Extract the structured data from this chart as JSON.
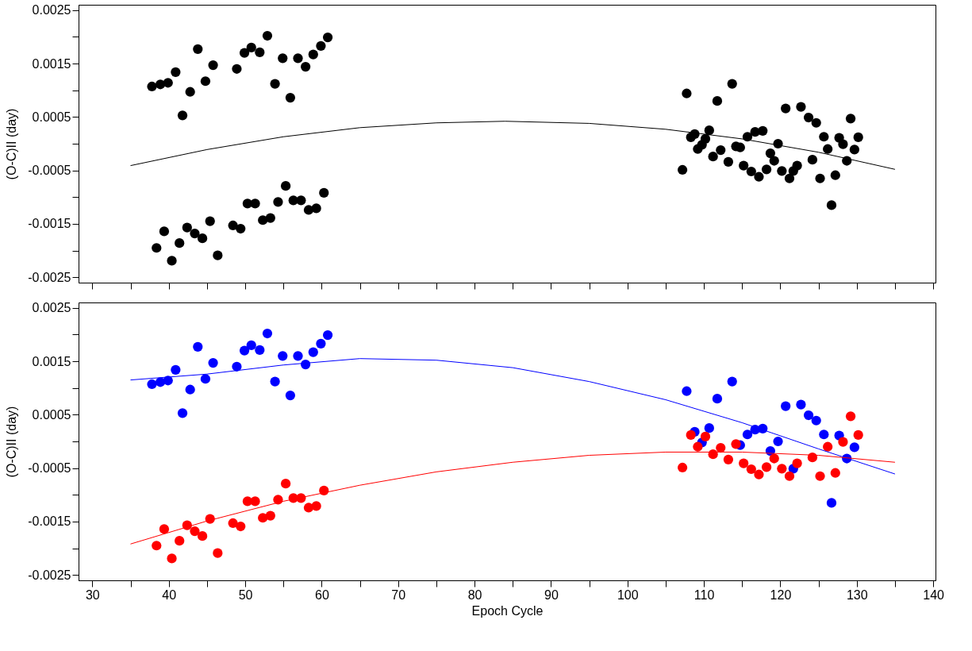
{
  "chart_data": [
    {
      "type": "scatter",
      "ylabel": "(O-C)II (day)",
      "tick_labels": "y",
      "xlim": [
        28.2,
        140.3
      ],
      "ylim": [
        -0.0026,
        0.0026
      ],
      "xticks": [
        30,
        {
          "value": 35,
          "label": null
        },
        40,
        {
          "value": 45,
          "label": null
        },
        50,
        {
          "value": 55,
          "label": null
        },
        60,
        {
          "value": 65,
          "label": null
        },
        70,
        {
          "value": 75,
          "label": null
        },
        80,
        {
          "value": 85,
          "label": null
        },
        90,
        {
          "value": 95,
          "label": null
        },
        100,
        {
          "value": 105,
          "label": null
        },
        110,
        {
          "value": 115,
          "label": null
        },
        120,
        {
          "value": 125,
          "label": null
        },
        130,
        {
          "value": 135,
          "label": null
        },
        140
      ],
      "yticks": [
        -0.0025,
        {
          "value": -0.002,
          "label": null
        },
        -0.0015,
        {
          "value": -0.001,
          "label": null
        },
        -0.0005,
        {
          "value": 0,
          "label": null
        },
        0.0005,
        {
          "value": 0.001,
          "label": null
        },
        0.0015,
        {
          "value": 0.002,
          "label": null
        },
        0.0025
      ],
      "series": [
        {
          "color": "#000000",
          "marker": "circle",
          "x": [
            37.8,
            38.9,
            39.9,
            40.9,
            41.8,
            42.8,
            43.8,
            44.8,
            45.8,
            48.9,
            49.9,
            50.8,
            51.9,
            52.9,
            53.9,
            54.9,
            55.9,
            56.9,
            57.9,
            58.9,
            59.9,
            60.8,
            107.75,
            108.8,
            109.75,
            110.7,
            111.75,
            113.7,
            114.75,
            115.7,
            116.7,
            117.7,
            118.7,
            119.7,
            120.7,
            121.7,
            122.7,
            123.7,
            124.7,
            125.7,
            126.7,
            127.7,
            128.7,
            129.7,
            38.4,
            39.4,
            40.4,
            41.4,
            42.4,
            43.4,
            44.4,
            45.4,
            46.4,
            48.4,
            49.4,
            50.3,
            51.3,
            52.3,
            53.3,
            54.3,
            55.3,
            56.3,
            57.3,
            58.3,
            59.3,
            60.3,
            107.2,
            108.3,
            109.2,
            110.2,
            111.2,
            112.2,
            113.2,
            114.2,
            115.2,
            116.2,
            117.2,
            118.2,
            119.2,
            120.2,
            121.2,
            122.2,
            124.2,
            125.2,
            126.2,
            127.2,
            128.2,
            129.2,
            130.2
          ],
          "values": [
            0.00107,
            0.00111,
            0.00114,
            0.00134,
            0.00053,
            0.00097,
            0.00177,
            0.00117,
            0.00147,
            0.0014,
            0.0017,
            0.0018,
            0.00171,
            0.00202,
            0.00112,
            0.0016,
            0.00086,
            0.0016,
            0.00144,
            0.00167,
            0.00183,
            0.00199,
            0.00094,
            0.00018,
            -2e-05,
            0.00025,
            0.0008,
            0.00112,
            -7e-05,
            0.00013,
            0.00022,
            0.00024,
            -0.00018,
            0,
            0.00066,
            -0.00051,
            0.00069,
            0.00049,
            0.00039,
            0.00013,
            -0.00115,
            0.00011,
            -0.00032,
            -0.00011,
            -0.00195,
            -0.00164,
            -0.00219,
            -0.00186,
            -0.00157,
            -0.00168,
            -0.00177,
            -0.00145,
            -0.00209,
            -0.00153,
            -0.00159,
            -0.00112,
            -0.00112,
            -0.00143,
            -0.00139,
            -0.00109,
            -0.00079,
            -0.00106,
            -0.00106,
            -0.00124,
            -0.00121,
            -0.00092,
            -0.00049,
            0.00012,
            -0.0001,
            9e-05,
            -0.00024,
            -0.00012,
            -0.00034,
            -5e-05,
            -0.00041,
            -0.00052,
            -0.00062,
            -0.00048,
            -0.00032,
            -0.00051,
            -0.00065,
            -0.00041,
            -0.0003,
            -0.00065,
            -0.0001,
            -0.00059,
            -1e-05,
            0.00047,
            0.00012
          ]
        },
        {
          "type": "line",
          "color": "#000000",
          "x": [
            35,
            45,
            55,
            65,
            75,
            84,
            95,
            105,
            115,
            125,
            135
          ],
          "values": [
            -0.00041,
            -0.00011,
            0.00013,
            0.0003,
            0.00039,
            0.00042,
            0.00038,
            0.00027,
            9e-05,
            -0.00016,
            -0.00048
          ]
        }
      ]
    },
    {
      "type": "scatter",
      "xlabel": "Epoch Cycle",
      "ylabel": "(O-C)II (day)",
      "xlim": [
        28.2,
        140.3
      ],
      "ylim": [
        -0.0026,
        0.0026
      ],
      "xticks": [
        30,
        {
          "value": 35,
          "label": null
        },
        40,
        {
          "value": 45,
          "label": null
        },
        50,
        {
          "value": 55,
          "label": null
        },
        60,
        {
          "value": 65,
          "label": null
        },
        70,
        {
          "value": 75,
          "label": null
        },
        80,
        {
          "value": 85,
          "label": null
        },
        90,
        {
          "value": 95,
          "label": null
        },
        100,
        {
          "value": 105,
          "label": null
        },
        110,
        {
          "value": 115,
          "label": null
        },
        120,
        {
          "value": 125,
          "label": null
        },
        130,
        {
          "value": 135,
          "label": null
        },
        140
      ],
      "yticks": [
        -0.0025,
        {
          "value": -0.002,
          "label": null
        },
        -0.0015,
        {
          "value": -0.001,
          "label": null
        },
        -0.0005,
        {
          "value": 0,
          "label": null
        },
        0.0005,
        {
          "value": 0.001,
          "label": null
        },
        0.0015,
        {
          "value": 0.002,
          "label": null
        },
        0.0025
      ],
      "series": [
        {
          "color": "#0000ff",
          "marker": "circle",
          "x": [
            37.8,
            38.9,
            39.9,
            40.9,
            41.8,
            42.8,
            43.8,
            44.8,
            45.8,
            48.9,
            49.9,
            50.8,
            51.9,
            52.9,
            53.9,
            54.9,
            55.9,
            56.9,
            57.9,
            58.9,
            59.9,
            60.8,
            107.75,
            108.8,
            109.75,
            110.7,
            111.75,
            113.7,
            114.75,
            115.7,
            116.7,
            117.7,
            118.7,
            119.7,
            120.7,
            121.7,
            122.7,
            123.7,
            124.7,
            125.7,
            126.7,
            127.7,
            128.7,
            129.7
          ],
          "values": [
            0.00107,
            0.00111,
            0.00114,
            0.00134,
            0.00053,
            0.00097,
            0.00177,
            0.00117,
            0.00147,
            0.0014,
            0.0017,
            0.0018,
            0.00171,
            0.00202,
            0.00112,
            0.0016,
            0.00086,
            0.0016,
            0.00144,
            0.00167,
            0.00183,
            0.00199,
            0.00094,
            0.00018,
            -2e-05,
            0.00025,
            0.0008,
            0.00112,
            -7e-05,
            0.00013,
            0.00022,
            0.00024,
            -0.00018,
            0,
            0.00066,
            -0.00051,
            0.00069,
            0.00049,
            0.00039,
            0.00013,
            -0.00115,
            0.00011,
            -0.00032,
            -0.00011
          ]
        },
        {
          "color": "#ff0000",
          "marker": "circle",
          "x": [
            38.4,
            39.4,
            40.4,
            41.4,
            42.4,
            43.4,
            44.4,
            45.4,
            46.4,
            48.4,
            49.4,
            50.3,
            51.3,
            52.3,
            53.3,
            54.3,
            55.3,
            56.3,
            57.3,
            58.3,
            59.3,
            60.3,
            107.2,
            108.3,
            109.2,
            110.2,
            111.2,
            112.2,
            113.2,
            114.2,
            115.2,
            116.2,
            117.2,
            118.2,
            119.2,
            120.2,
            121.2,
            122.2,
            124.2,
            125.2,
            126.2,
            127.2,
            128.2,
            129.2,
            130.2
          ],
          "values": [
            -0.00195,
            -0.00164,
            -0.00219,
            -0.00186,
            -0.00157,
            -0.00168,
            -0.00177,
            -0.00145,
            -0.00209,
            -0.00153,
            -0.00159,
            -0.00112,
            -0.00112,
            -0.00143,
            -0.00139,
            -0.00109,
            -0.00079,
            -0.00106,
            -0.00106,
            -0.00124,
            -0.00121,
            -0.00092,
            -0.00049,
            0.00012,
            -0.0001,
            9e-05,
            -0.00024,
            -0.00012,
            -0.00034,
            -5e-05,
            -0.00041,
            -0.00052,
            -0.00062,
            -0.00048,
            -0.00032,
            -0.00051,
            -0.00065,
            -0.00041,
            -0.0003,
            -0.00065,
            -0.0001,
            -0.00059,
            -1e-05,
            0.00047,
            0.00012
          ]
        },
        {
          "type": "line",
          "color": "#0000ff",
          "x": [
            35,
            45,
            55,
            65,
            75,
            85,
            95,
            105,
            115,
            125,
            135
          ],
          "values": [
            0.00115,
            0.00126,
            0.00143,
            0.00155,
            0.00152,
            0.00138,
            0.00112,
            0.00078,
            0.00035,
            -0.00014,
            -0.00061
          ]
        },
        {
          "type": "line",
          "color": "#ff0000",
          "x": [
            35,
            45,
            55,
            65,
            75,
            85,
            95,
            105,
            115,
            125,
            135
          ],
          "values": [
            -0.00192,
            -0.00149,
            -0.00112,
            -0.00082,
            -0.00057,
            -0.00039,
            -0.00026,
            -0.0002,
            -0.0002,
            -0.00026,
            -0.00039
          ]
        }
      ]
    }
  ]
}
